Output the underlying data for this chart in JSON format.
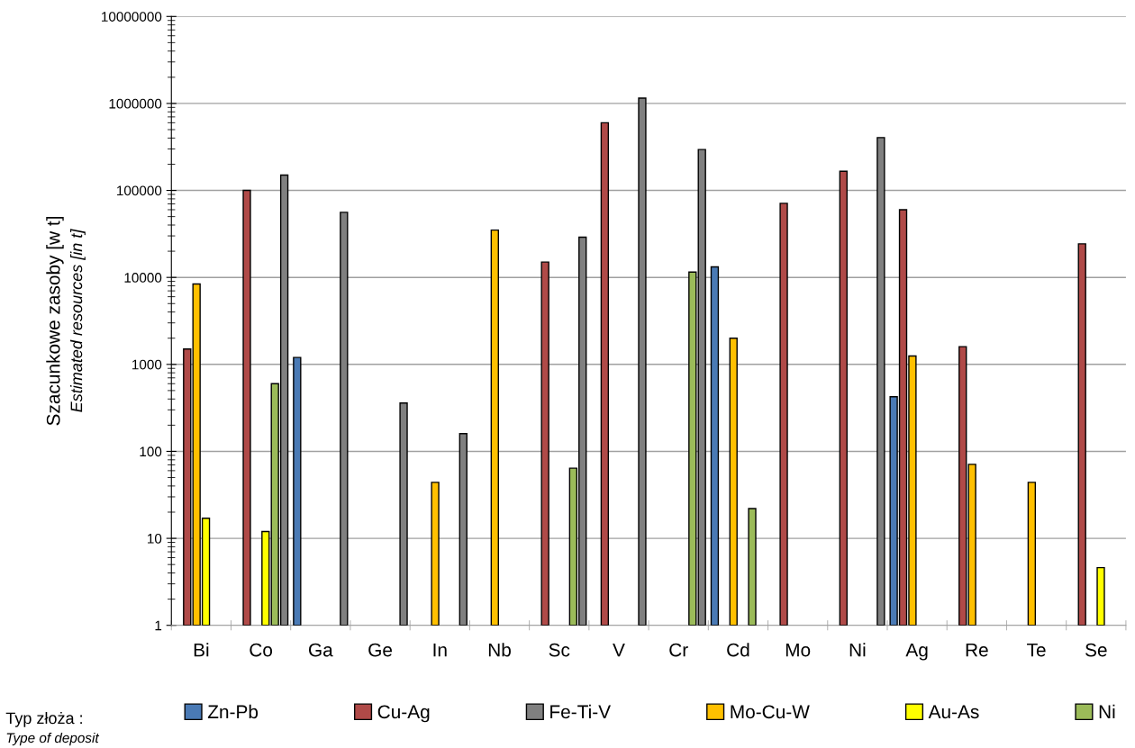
{
  "chart_data": {
    "type": "bar",
    "ylabel": "Szacunkowe zasoby [w t]\nEstimated resources [in t]",
    "legend_title": "Typ złoża :\nType of deposit",
    "categories": [
      "Bi",
      "Co",
      "Ga",
      "Ge",
      "In",
      "Nb",
      "Sc",
      "V",
      "Cr",
      "Cd",
      "Mo",
      "Ni",
      "Ag",
      "Re",
      "Te",
      "Se"
    ],
    "series": [
      {
        "name": "Zn-Pb",
        "color": "#4a7ab5",
        "values": [
          null,
          null,
          1200,
          null,
          null,
          null,
          null,
          null,
          null,
          13200,
          null,
          null,
          425,
          null,
          null,
          null
        ]
      },
      {
        "name": "Cu-Ag",
        "color": "#b04a48",
        "values": [
          1500,
          100000,
          null,
          null,
          null,
          null,
          15000,
          600000,
          null,
          null,
          71000,
          166000,
          60000,
          1600,
          null,
          24300
        ]
      },
      {
        "name": "Fe-Ti-V",
        "color": "#808080",
        "values": [
          null,
          150000,
          56000,
          360,
          160,
          null,
          29000,
          1150000,
          295000,
          null,
          null,
          405000,
          null,
          null,
          null,
          null
        ]
      },
      {
        "name": "Mo-Cu-W",
        "color": "#ffc000",
        "values": [
          8400,
          null,
          null,
          null,
          44,
          35000,
          null,
          null,
          null,
          2000,
          null,
          null,
          1250,
          71,
          44,
          null
        ]
      },
      {
        "name": "Au-As",
        "color": "#ffff00",
        "values": [
          17,
          12,
          null,
          null,
          null,
          null,
          null,
          null,
          null,
          null,
          null,
          null,
          null,
          null,
          null,
          4.6
        ]
      },
      {
        "name": "Ni",
        "color": "#9bbb59",
        "values": [
          null,
          600,
          null,
          null,
          null,
          null,
          64,
          null,
          11500,
          22,
          null,
          null,
          null,
          null,
          null,
          null
        ]
      }
    ],
    "log": "y",
    "ylim": [
      1,
      10000000
    ],
    "yticks": [
      1,
      10,
      100,
      1000,
      10000,
      100000,
      1000000,
      10000000
    ],
    "grid": "y",
    "legend": "bottom"
  }
}
